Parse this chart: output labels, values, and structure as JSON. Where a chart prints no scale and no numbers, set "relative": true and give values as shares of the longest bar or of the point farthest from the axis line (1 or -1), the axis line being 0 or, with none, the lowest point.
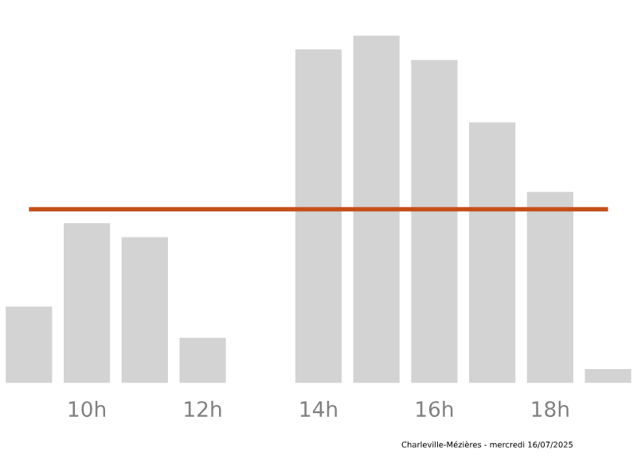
{
  "chart_data": {
    "type": "bar",
    "relative": true,
    "categories": [
      null,
      "10h",
      null,
      "12h",
      null,
      "14h",
      null,
      "16h",
      null,
      "18h",
      null
    ],
    "values": [
      0.22,
      0.46,
      0.42,
      0.13,
      0,
      0.96,
      1,
      0.93,
      0.75,
      0.55,
      0.04
    ],
    "color": "#d3d3d3",
    "ref_lines": [
      {
        "axis": "y",
        "value": 0.5,
        "color": "#c4501a",
        "line_style": "solid"
      }
    ],
    "annotations": [
      "Charleville-Mézières - mercredi 16/07/2025"
    ],
    "grid": false,
    "legend": false
  }
}
